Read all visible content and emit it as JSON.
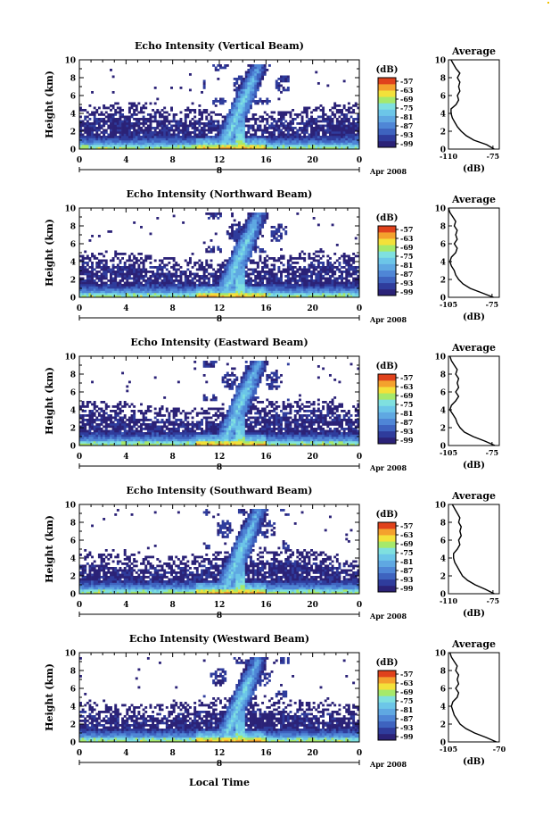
{
  "colors": {
    "colorbar": [
      "#2b2277",
      "#2f3c9c",
      "#3e63bf",
      "#4f86d6",
      "#5fa8e2",
      "#6cc6e8",
      "#7fe0df",
      "#a6e96b",
      "#f3e13a",
      "#f4a12d",
      "#e0421c"
    ],
    "background": "#ffffff",
    "axis": "#000000"
  },
  "x_axis_label": "Local Time",
  "chart_data": [
    {
      "type": "heatmap",
      "title": "Echo Intensity (Vertical Beam)",
      "ylabel": "Height (km)",
      "xlabel": "Local Time",
      "x_ticks": [
        "0",
        "4",
        "8",
        "12",
        "16",
        "20",
        "0"
      ],
      "y_ticks": [
        "0",
        "2",
        "4",
        "6",
        "8",
        "10"
      ],
      "xlim": [
        0,
        24
      ],
      "ylim": [
        0,
        10
      ],
      "date_marker": "8",
      "date_label": "Apr 2008",
      "colorbar": {
        "label": "(dB)",
        "ticks": [
          "-57",
          "-63",
          "-69",
          "-75",
          "-81",
          "-87",
          "-93",
          "-99"
        ]
      },
      "profile": {
        "title": "Average",
        "xlabel": "(dB)",
        "x_ticks": [
          "-110",
          "-75"
        ],
        "y_ticks": [
          "0",
          "2",
          "4",
          "6",
          "8",
          "10"
        ],
        "xlim": [
          -110,
          -70
        ],
        "heights": [
          0,
          0.5,
          1,
          1.5,
          2,
          2.5,
          3,
          3.5,
          4,
          4.5,
          5,
          5.5,
          6,
          6.5,
          7,
          7.5,
          8,
          8.5,
          9,
          9.5,
          10
        ],
        "values": [
          -74,
          -80,
          -90,
          -96,
          -100,
          -103,
          -105,
          -107,
          -108,
          -108,
          -104,
          -102,
          -103,
          -101,
          -102,
          -101,
          -103,
          -101,
          -104,
          -106,
          -108
        ]
      }
    },
    {
      "type": "heatmap",
      "title": "Echo Intensity (Northward Beam)",
      "ylabel": "Height (km)",
      "xlabel": "Local Time",
      "x_ticks": [
        "0",
        "4",
        "8",
        "12",
        "16",
        "20",
        "0"
      ],
      "y_ticks": [
        "0",
        "2",
        "4",
        "6",
        "8",
        "10"
      ],
      "xlim": [
        0,
        24
      ],
      "ylim": [
        0,
        10
      ],
      "date_marker": "8",
      "date_label": "Apr 2008",
      "colorbar": {
        "label": "(dB)",
        "ticks": [
          "-57",
          "-63",
          "-69",
          "-75",
          "-81",
          "-87",
          "-93",
          "-99"
        ]
      },
      "profile": {
        "title": "Average",
        "xlabel": "(dB)",
        "x_ticks": [
          "-105",
          "-75"
        ],
        "y_ticks": [
          "0",
          "2",
          "4",
          "6",
          "8",
          "10"
        ],
        "xlim": [
          -105,
          -70
        ],
        "heights": [
          0,
          0.5,
          1,
          1.5,
          2,
          2.5,
          3,
          3.5,
          4,
          4.5,
          5,
          5.5,
          6,
          6.5,
          7,
          7.5,
          8,
          8.5,
          9,
          9.5,
          10
        ],
        "values": [
          -74,
          -82,
          -90,
          -95,
          -98,
          -100,
          -101,
          -103,
          -104,
          -103,
          -100,
          -99,
          -101,
          -99,
          -100,
          -99,
          -101,
          -100,
          -102,
          -104,
          -105
        ]
      }
    },
    {
      "type": "heatmap",
      "title": "Echo Intensity (Eastward Beam)",
      "ylabel": "Height (km)",
      "xlabel": "Local Time",
      "x_ticks": [
        "0",
        "4",
        "8",
        "12",
        "16",
        "20",
        "0"
      ],
      "y_ticks": [
        "0",
        "2",
        "4",
        "6",
        "8",
        "10"
      ],
      "xlim": [
        0,
        24
      ],
      "ylim": [
        0,
        10
      ],
      "date_marker": "8",
      "date_label": "Apr 2008",
      "colorbar": {
        "label": "(dB)",
        "ticks": [
          "-57",
          "-63",
          "-69",
          "-75",
          "-81",
          "-87",
          "-93",
          "-99"
        ]
      },
      "profile": {
        "title": "Average",
        "xlabel": "(dB)",
        "x_ticks": [
          "-105",
          "-75"
        ],
        "y_ticks": [
          "0",
          "2",
          "4",
          "6",
          "8",
          "10"
        ],
        "xlim": [
          -105,
          -70
        ],
        "heights": [
          0,
          0.5,
          1,
          1.5,
          2,
          2.5,
          3,
          3.5,
          4,
          4.5,
          5,
          5.5,
          6,
          6.5,
          7,
          7.5,
          8,
          8.5,
          9,
          9.5,
          10
        ],
        "values": [
          -73,
          -80,
          -88,
          -94,
          -97,
          -99,
          -100,
          -102,
          -104,
          -103,
          -100,
          -98,
          -100,
          -98,
          -99,
          -98,
          -100,
          -99,
          -101,
          -103,
          -104
        ]
      }
    },
    {
      "type": "heatmap",
      "title": "Echo Intensity (Southward Beam)",
      "ylabel": "Height (km)",
      "xlabel": "Local Time",
      "x_ticks": [
        "0",
        "4",
        "8",
        "12",
        "16",
        "20",
        "0"
      ],
      "y_ticks": [
        "0",
        "2",
        "4",
        "6",
        "8",
        "10"
      ],
      "xlim": [
        0,
        24
      ],
      "ylim": [
        0,
        10
      ],
      "date_marker": "8",
      "date_label": "Apr 2008",
      "colorbar": {
        "label": "(dB)",
        "ticks": [
          "-57",
          "-63",
          "-69",
          "-75",
          "-81",
          "-87",
          "-93",
          "-99"
        ]
      },
      "profile": {
        "title": "Average",
        "xlabel": "(dB)",
        "x_ticks": [
          "-110",
          "-75"
        ],
        "y_ticks": [
          "0",
          "2",
          "4",
          "6",
          "8",
          "10"
        ],
        "xlim": [
          -110,
          -70
        ],
        "heights": [
          0,
          0.5,
          1,
          1.5,
          2,
          2.5,
          3,
          3.5,
          4,
          4.5,
          5,
          5.5,
          6,
          6.5,
          7,
          7.5,
          8,
          8.5,
          9,
          9.5,
          10
        ],
        "values": [
          -74,
          -81,
          -89,
          -95,
          -99,
          -101,
          -103,
          -105,
          -106,
          -106,
          -103,
          -101,
          -102,
          -100,
          -101,
          -100,
          -102,
          -101,
          -103,
          -105,
          -107
        ]
      }
    },
    {
      "type": "heatmap",
      "title": "Echo Intensity (Westward Beam)",
      "ylabel": "Height (km)",
      "xlabel": "Local Time",
      "x_ticks": [
        "0",
        "4",
        "8",
        "12",
        "16",
        "20",
        "0"
      ],
      "y_ticks": [
        "0",
        "2",
        "4",
        "6",
        "8",
        "10"
      ],
      "xlim": [
        0,
        24
      ],
      "ylim": [
        0,
        10
      ],
      "date_marker": "8",
      "date_label": "Apr 2008",
      "colorbar": {
        "label": "(dB)",
        "ticks": [
          "-57",
          "-63",
          "-69",
          "-75",
          "-81",
          "-87",
          "-93",
          "-99"
        ]
      },
      "profile": {
        "title": "Average",
        "xlabel": "(dB)",
        "x_ticks": [
          "-105",
          "-70"
        ],
        "y_ticks": [
          "0",
          "2",
          "4",
          "6",
          "8",
          "10"
        ],
        "xlim": [
          -105,
          -70
        ],
        "heights": [
          0,
          0.5,
          1,
          1.5,
          2,
          2.5,
          3,
          3.5,
          4,
          4.5,
          5,
          5.5,
          6,
          6.5,
          7,
          7.5,
          8,
          8.5,
          9,
          9.5,
          10
        ],
        "values": [
          -72,
          -79,
          -87,
          -93,
          -97,
          -99,
          -101,
          -102,
          -103,
          -102,
          -99,
          -98,
          -100,
          -98,
          -99,
          -98,
          -100,
          -99,
          -101,
          -103,
          -104
        ]
      }
    }
  ]
}
